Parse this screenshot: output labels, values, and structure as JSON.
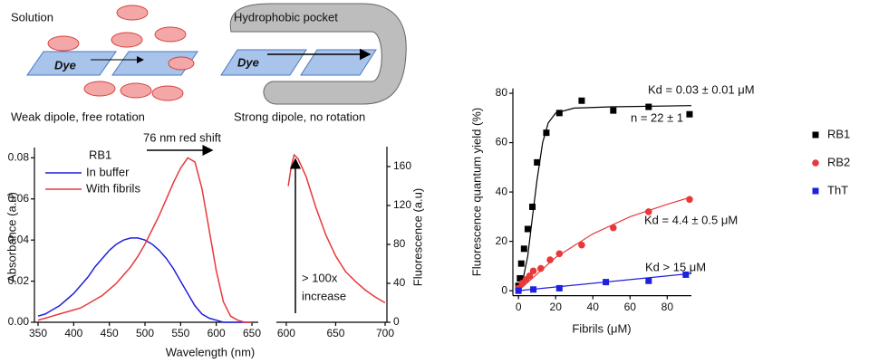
{
  "diagram": {
    "left_label": "Solution",
    "left_dye": "Dye",
    "left_caption": "Weak dipole, free rotation",
    "right_label": "Hydrophobic pocket",
    "right_dye": "Dye",
    "right_caption": "Strong dipole, no rotation"
  },
  "chart_data": [
    {
      "type": "line",
      "xlabel": "Wavelength (nm)",
      "ylabel": "Absorbance (a.u)",
      "annotations": [
        "RB1",
        "76 nm red shift"
      ],
      "x": [
        350,
        360,
        370,
        380,
        390,
        400,
        410,
        420,
        430,
        440,
        450,
        460,
        470,
        480,
        490,
        500,
        510,
        520,
        530,
        540,
        550,
        560,
        570,
        580,
        590,
        600,
        610,
        620,
        630,
        640,
        650
      ],
      "series": [
        {
          "name": "In buffer",
          "color": "#1f1fe0",
          "values": [
            0.003,
            0.004,
            0.006,
            0.008,
            0.011,
            0.014,
            0.018,
            0.022,
            0.027,
            0.031,
            0.035,
            0.038,
            0.04,
            0.041,
            0.041,
            0.04,
            0.038,
            0.035,
            0.031,
            0.026,
            0.02,
            0.014,
            0.008,
            0.004,
            0.002,
            0.001,
            0,
            0,
            0,
            0,
            0
          ]
        },
        {
          "name": "With fibrils",
          "color": "#e8383a",
          "values": [
            0.001,
            0.002,
            0.003,
            0.004,
            0.005,
            0.006,
            0.007,
            0.009,
            0.011,
            0.013,
            0.016,
            0.019,
            0.023,
            0.027,
            0.032,
            0.038,
            0.045,
            0.052,
            0.06,
            0.068,
            0.075,
            0.08,
            0.078,
            0.065,
            0.045,
            0.025,
            0.01,
            0.003,
            0.001,
            0,
            0
          ]
        }
      ],
      "xlim": [
        350,
        650
      ],
      "xticks": [
        350,
        400,
        450,
        500,
        550,
        600,
        650
      ],
      "ylim": [
        0,
        0.085
      ],
      "yticks": [
        {
          "value": 0,
          "label": "0.00"
        },
        {
          "value": 0.02,
          "label": "0.02"
        },
        {
          "value": 0.04,
          "label": "0.04"
        },
        {
          "value": 0.06,
          "label": "0.06"
        },
        {
          "value": 0.08,
          "label": "0.08"
        }
      ]
    },
    {
      "type": "line",
      "ylabel": "Fluorescence (a.u)",
      "annotations": [
        "> 100x",
        "increase"
      ],
      "x": [
        602,
        605,
        608,
        612,
        620,
        630,
        640,
        650,
        660,
        670,
        680,
        690,
        700
      ],
      "series": [
        {
          "color": "#e8383a",
          "axis": "y2",
          "values": [
            140,
            160,
            172,
            168,
            150,
            118,
            90,
            68,
            52,
            42,
            33,
            26,
            20
          ]
        }
      ],
      "xlim": [
        590,
        700
      ],
      "xticks": [
        600,
        650,
        700
      ],
      "y2lim": [
        0,
        180
      ],
      "y2ticks": [
        0,
        40,
        80,
        120,
        160
      ]
    },
    {
      "type": "scatter",
      "xlabel": "Fibrils (μM)",
      "ylabel": "Fluorescence quantum yield (%)",
      "annotations": [
        "Kd = 0.03 ± 0.01 μM",
        "n = 22 ± 1",
        "Kd = 4.4 ± 0.5 μM",
        "Kd > 15 μM"
      ],
      "series": [
        {
          "name": "RB1",
          "color": "#000000",
          "marker": "square",
          "x": [
            0,
            0.8,
            1.5,
            3,
            5,
            7.5,
            10,
            15,
            22,
            34,
            51,
            70,
            92
          ],
          "values": [
            2,
            5,
            11,
            17,
            25,
            34,
            52,
            64,
            72,
            77,
            73,
            74.5,
            71.5
          ]
        },
        {
          "name": "RB2",
          "color": "#e8383a",
          "marker": "circle",
          "x": [
            0,
            2,
            4,
            6,
            8,
            12,
            17,
            22,
            34,
            51,
            70,
            92
          ],
          "values": [
            1,
            3,
            4.5,
            6,
            8,
            9,
            12.5,
            15,
            18.5,
            25.5,
            32,
            37
          ]
        },
        {
          "name": "ThT",
          "color": "#1f1fe0",
          "marker": "square",
          "x": [
            0,
            8,
            22,
            47,
            70,
            90
          ],
          "values": [
            0,
            0.5,
            1,
            3.5,
            4,
            6.5
          ]
        }
      ],
      "fits": [
        {
          "color": "#000000",
          "x": [
            0,
            2,
            5,
            8,
            10,
            13,
            16,
            20,
            30,
            50,
            93
          ],
          "values": [
            0,
            3,
            14,
            33,
            45,
            60,
            68,
            72,
            74,
            74.5,
            75
          ]
        },
        {
          "color": "#e8383a",
          "x": [
            0,
            20,
            40,
            60,
            80,
            93
          ],
          "values": [
            0,
            13.5,
            23,
            30,
            35,
            38
          ]
        },
        {
          "color": "#1f1fe0",
          "x": [
            0,
            93
          ],
          "values": [
            0,
            7
          ]
        }
      ],
      "xlim": [
        -3,
        93
      ],
      "xticks": [
        0,
        20,
        40,
        60,
        80
      ],
      "ylim": [
        -2,
        82
      ],
      "yticks": [
        0,
        20,
        40,
        60,
        80
      ],
      "legend": "right"
    }
  ]
}
